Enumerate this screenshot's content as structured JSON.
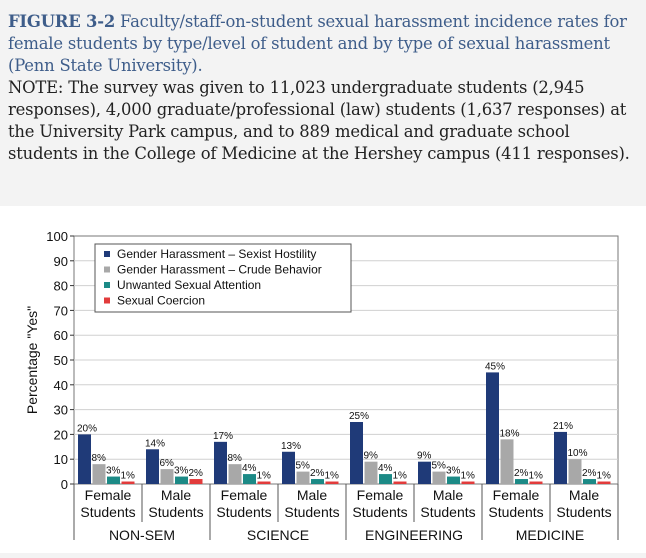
{
  "caption": {
    "figure_label": "FIGURE 3-2",
    "title": "Faculty/staff-on-student sexual harassment incidence rates for female students by type/level of student and by type of sexual harassment (Penn State University).",
    "note": "NOTE: The survey was given to 11,023 undergraduate students (2,945 responses), 4,000 graduate/professional (law) students (1,637 responses) at the University Park campus, and to 889 medical and graduate school students in the College of Medicine at the Hershey campus (411 responses)."
  },
  "colors": {
    "Gender Harassment – Sexist Hostility": "#1f3a78",
    "Gender Harassment – Crude Behavior": "#a8a8a8",
    "Unwanted Sexual Attention": "#1c8a86",
    "Sexual Coercion": "#e23b3b"
  },
  "chart_data": {
    "type": "bar",
    "ylabel": "Percentage \"Yes\"",
    "xlabel": "",
    "ylim": [
      0,
      100
    ],
    "yticks": [
      0,
      10,
      20,
      30,
      40,
      50,
      60,
      70,
      80,
      90,
      100
    ],
    "grid": true,
    "legend_position": "top-left",
    "categories": [
      {
        "line1": "Female",
        "line2": "Students"
      },
      {
        "line1": "Male",
        "line2": "Students"
      },
      {
        "line1": "Female",
        "line2": "Students"
      },
      {
        "line1": "Male",
        "line2": "Students"
      },
      {
        "line1": "Female",
        "line2": "Students"
      },
      {
        "line1": "Male",
        "line2": "Students"
      },
      {
        "line1": "Female",
        "line2": "Students"
      },
      {
        "line1": "Male",
        "line2": "Students"
      }
    ],
    "groups": [
      "NON-SEM",
      "SCIENCE",
      "ENGINEERING",
      "MEDICINE"
    ],
    "series": [
      {
        "name": "Gender Harassment – Sexist Hostility",
        "values": [
          20,
          14,
          17,
          13,
          25,
          9,
          45,
          21
        ],
        "labels": [
          "20%",
          "14%",
          "17%",
          "13%",
          "25%",
          "9%",
          "45%",
          "21%"
        ]
      },
      {
        "name": "Gender Harassment – Crude Behavior",
        "values": [
          8,
          6,
          8,
          5,
          9,
          5,
          18,
          10
        ],
        "labels": [
          "8%",
          "6%",
          "8%",
          "5%",
          "9%",
          "5%",
          "18%",
          "10%"
        ]
      },
      {
        "name": "Unwanted Sexual Attention",
        "values": [
          3,
          3,
          4,
          2,
          4,
          3,
          2,
          2
        ],
        "labels": [
          "3%",
          "3%",
          "4%",
          "2%",
          "4%",
          "3%",
          "2%",
          "2%"
        ]
      },
      {
        "name": "Sexual Coercion",
        "values": [
          1,
          2,
          1,
          1,
          1,
          1,
          1,
          1
        ],
        "labels": [
          "1%",
          "2%",
          "1%",
          "1%",
          "1%",
          "1%",
          "1%",
          "1%"
        ]
      }
    ]
  }
}
